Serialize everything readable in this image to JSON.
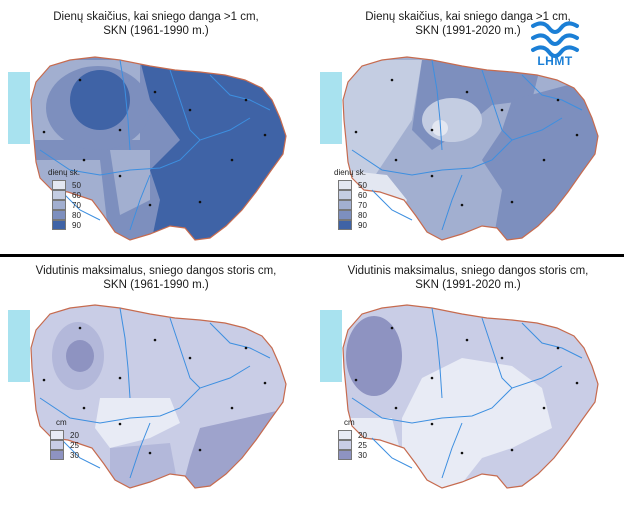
{
  "panels": {
    "top_left": {
      "title_line1": "Dienų skaičius, kai sniego danga >1 cm,",
      "title_line2": "SKN (1961-1990 m.)",
      "legend_title": "dienų sk.",
      "legend_levels": [
        "50",
        "60",
        "70",
        "80",
        "90"
      ]
    },
    "top_right": {
      "title_line1": "Dienų skaičius, kai sniego danga >1 cm,",
      "title_line2": "SKN (1991-2020 m.)",
      "legend_title": "dienų sk.",
      "legend_levels": [
        "50",
        "60",
        "70",
        "80",
        "90"
      ]
    },
    "bottom_left": {
      "title_line1": "Vidutinis maksimalus, sniego dangos storis cm,",
      "title_line2": "SKN (1961-1990 m.)",
      "legend_title": "cm",
      "legend_levels": [
        "20",
        "25",
        "30"
      ]
    },
    "bottom_right": {
      "title_line1": "Vidutinis maksimalus, sniego dangos storis cm,",
      "title_line2": "SKN (1991-2020 m.)",
      "legend_title": "cm",
      "legend_levels": [
        "20",
        "25",
        "30"
      ]
    }
  },
  "logo": {
    "text": "LHMT",
    "color": "#1b7fd6",
    "icon": "lhmt-waves-logo"
  },
  "colors": {
    "days_scale": [
      "#e3e7f1",
      "#c4cde2",
      "#a2afd0",
      "#7d8fbe",
      "#3f63a6"
    ],
    "depth_scale": [
      "#e8ebf5",
      "#c9cde6",
      "#8e93c1"
    ],
    "river": "#3d8fe0",
    "border": "#c66b4f",
    "sea": "#a8e2ef"
  }
}
